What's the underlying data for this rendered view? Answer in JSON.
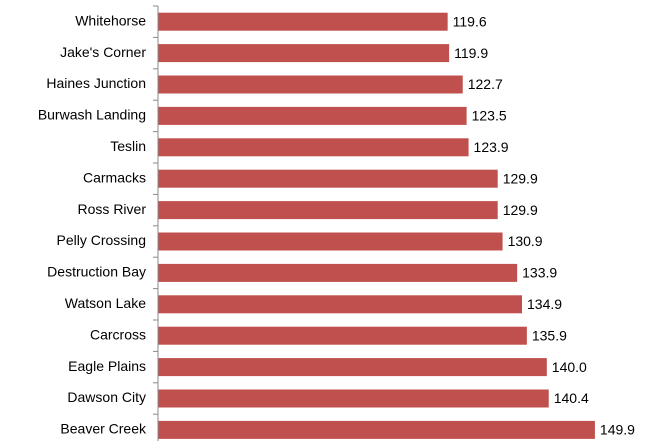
{
  "chart_data": {
    "type": "bar",
    "orientation": "horizontal",
    "categories": [
      "Whitehorse",
      "Jake's Corner",
      "Haines Junction",
      "Burwash Landing",
      "Teslin",
      "Carmacks",
      "Ross River",
      "Pelly Crossing",
      "Destruction Bay",
      "Watson Lake",
      "Carcross",
      "Eagle Plains",
      "Dawson City",
      "Beaver Creek"
    ],
    "values": [
      119.6,
      119.9,
      122.7,
      123.5,
      123.9,
      129.9,
      129.9,
      130.9,
      133.9,
      134.9,
      135.9,
      140.0,
      140.4,
      149.9
    ],
    "value_labels": [
      "119.6",
      "119.9",
      "122.7",
      "123.5",
      "123.9",
      "129.9",
      "129.9",
      "130.9",
      "133.9",
      "134.9",
      "135.9",
      "140.0",
      "140.4",
      "149.9"
    ],
    "color": "#c0504d",
    "xlim": [
      60,
      160
    ]
  }
}
